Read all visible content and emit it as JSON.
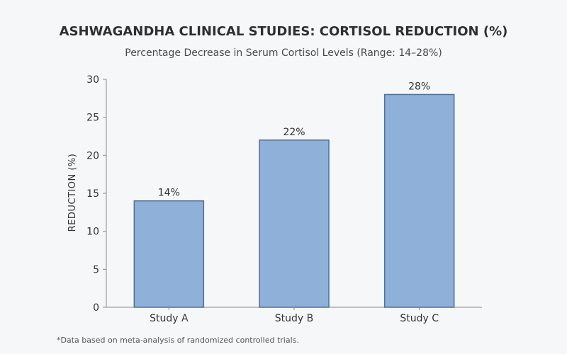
{
  "chart_data": {
    "type": "bar",
    "title": "ASHWAGANDHA CLINICAL STUDIES: CORTISOL REDUCTION (%)",
    "subtitle": "Percentage Decrease in Serum Cortisol Levels (Range: 14–28%)",
    "xlabel": "",
    "ylabel": "REDUCTION (%)",
    "categories": [
      "Study A",
      "Study B",
      "Study C"
    ],
    "values": [
      14,
      22,
      28
    ],
    "data_labels": [
      "14%",
      "22%",
      "28%"
    ],
    "ylim": [
      0,
      30
    ],
    "yticks": [
      0,
      5,
      10,
      15,
      20,
      25,
      30
    ],
    "grid": false,
    "bar_color": "#8fb1d9",
    "bar_edge_color": "#4f6f94",
    "footnote": "*Data based on meta-analysis of randomized controlled trials."
  }
}
